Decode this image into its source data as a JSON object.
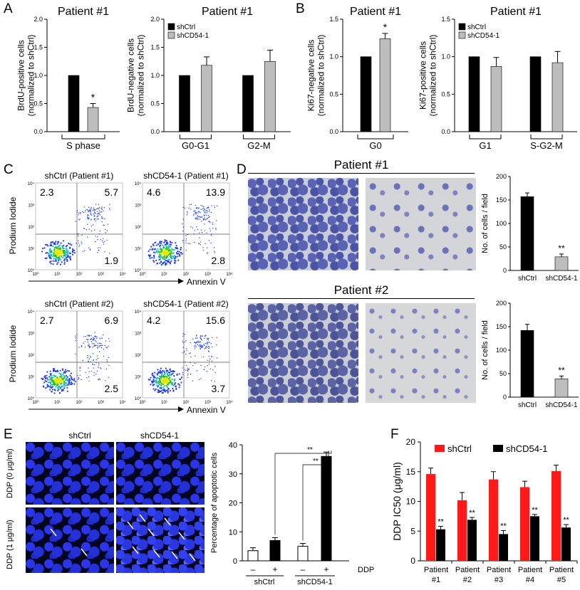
{
  "panel_labels": {
    "A": "A",
    "B": "B",
    "C": "C",
    "D": "D",
    "E": "E",
    "F": "F"
  },
  "colors": {
    "black_bar": "#000000",
    "gray_bar": "#bdbdbd",
    "red_bar": "#ff1a1a",
    "flow_blue": "#1f3cff"
  },
  "chart_data": [
    {
      "id": "A1",
      "type": "bar",
      "title": "Patient #1",
      "ylabel": "BrdU-positive cells (normalized to shCtrl)",
      "ylim": [
        0,
        2.0
      ],
      "yticks": [
        "0.0",
        "0.5",
        "1.0",
        "1.5",
        "2.0"
      ],
      "categories": [
        "S phase"
      ],
      "series": [
        {
          "name": "shCtrl",
          "values": [
            1.0
          ]
        },
        {
          "name": "shCD54-1",
          "values": [
            0.43
          ]
        }
      ],
      "errors": [
        [
          0
        ],
        [
          0.07
        ]
      ],
      "annotations": [
        "*"
      ]
    },
    {
      "id": "A2",
      "type": "bar",
      "title": "Patient #1",
      "ylabel": "BrdU-negative cells (normalized to shCtrl)",
      "ylim": [
        0,
        2.0
      ],
      "yticks": [
        "0.0",
        "0.5",
        "1.0",
        "1.5",
        "2.0"
      ],
      "categories": [
        "G0-G1",
        "G2-M"
      ],
      "legend": [
        "shCtrl",
        "shCD54-1"
      ],
      "series": [
        {
          "name": "shCtrl",
          "values": [
            1.0,
            1.0
          ]
        },
        {
          "name": "shCD54-1",
          "values": [
            1.18,
            1.25
          ]
        }
      ],
      "errors": [
        [
          0,
          0
        ],
        [
          0.15,
          0.2
        ]
      ]
    },
    {
      "id": "B1",
      "type": "bar",
      "title": "Patient #1",
      "ylabel": "Ki67-negative cells (normalized to shCtrl)",
      "ylim": [
        0,
        1.5
      ],
      "yticks": [
        "0.0",
        "0.5",
        "1.0",
        "1.5"
      ],
      "categories": [
        "G0"
      ],
      "series": [
        {
          "name": "shCtrl",
          "values": [
            1.0
          ]
        },
        {
          "name": "shCD54-1",
          "values": [
            1.24
          ]
        }
      ],
      "errors": [
        [
          0
        ],
        [
          0.07
        ]
      ],
      "annotations": [
        "*"
      ]
    },
    {
      "id": "B2",
      "type": "bar",
      "title": "Patient #1",
      "ylabel": "Ki67-positive cells (normalized to shCtrl)",
      "ylim": [
        0,
        1.5
      ],
      "yticks": [
        "0.0",
        "0.5",
        "1.0",
        "1.5"
      ],
      "categories": [
        "G1",
        "S-G2-M"
      ],
      "legend": [
        "shCtrl",
        "shCD54-1"
      ],
      "series": [
        {
          "name": "shCtrl",
          "values": [
            1.0,
            1.0
          ]
        },
        {
          "name": "shCD54-1",
          "values": [
            0.87,
            0.92
          ]
        }
      ],
      "errors": [
        [
          0,
          0
        ],
        [
          0.12,
          0.15
        ]
      ]
    },
    {
      "id": "D1",
      "type": "bar",
      "ylabel": "No. of cells / field",
      "ylim": [
        0,
        200
      ],
      "yticks": [
        "0",
        "50",
        "100",
        "150",
        "200"
      ],
      "categories": [
        "shCtrl",
        "shCD54-1"
      ],
      "values": [
        157,
        29
      ],
      "errors": [
        8,
        6
      ],
      "annotations": [
        "**"
      ]
    },
    {
      "id": "D2",
      "type": "bar",
      "ylabel": "No. of cells / field",
      "ylim": [
        0,
        200
      ],
      "yticks": [
        "0",
        "50",
        "100",
        "150",
        "200"
      ],
      "categories": [
        "shCtrl",
        "shCD54-1"
      ],
      "values": [
        142,
        39
      ],
      "errors": [
        13,
        6
      ],
      "annotations": [
        "**"
      ]
    },
    {
      "id": "E",
      "type": "bar",
      "ylabel": "Percentage of apoptotic cells",
      "ylim": [
        0,
        40
      ],
      "yticks": [
        "0",
        "10",
        "20",
        "30",
        "40"
      ],
      "categories": [
        "–",
        "+",
        "–",
        "+"
      ],
      "groups": [
        "shCtrl",
        "shCD54-1"
      ],
      "extra_label": "DDP",
      "values": [
        3.5,
        7,
        5,
        36
      ],
      "errors": [
        1,
        1,
        1,
        1.5
      ],
      "annotations": [
        "**",
        "**"
      ]
    },
    {
      "id": "F",
      "type": "bar",
      "ylabel": "DDP IC50 (μg/ml)",
      "ylim": [
        0,
        20
      ],
      "yticks": [
        "0",
        "5",
        "10",
        "15",
        "20"
      ],
      "categories": [
        "Patient #1",
        "Patient #2",
        "Patient #3",
        "Patient #4",
        "Patient #5"
      ],
      "legend": [
        "shCtrl",
        "shCD54-1"
      ],
      "series": [
        {
          "name": "shCtrl",
          "values": [
            14.6,
            10.2,
            13.7,
            12.4,
            15.1
          ]
        },
        {
          "name": "shCD54-1",
          "values": [
            5.3,
            6.9,
            4.5,
            7.5,
            5.6
          ]
        }
      ],
      "errors": [
        [
          1.0,
          1.3,
          1.3,
          1.0,
          1.0
        ],
        [
          0.5,
          0.4,
          0.6,
          0.3,
          0.5
        ]
      ],
      "annotations": [
        "**"
      ]
    }
  ],
  "flow": {
    "ylabel": "Prodium Iodide",
    "xlabel": "Annexin V",
    "plots": [
      {
        "title": "shCtrl (Patient #1)",
        "ul": "2.3",
        "ur": "5.7",
        "lr": "1.9"
      },
      {
        "title": "shCD54-1 (Patient #1)",
        "ul": "4.6",
        "ur": "13.9",
        "lr": "2.8"
      },
      {
        "title": "shCtrl (Patient #2)",
        "ul": "2.7",
        "ur": "6.9",
        "lr": "2.5"
      },
      {
        "title": "shCD54-1 (Patient #2)",
        "ul": "4.2",
        "ur": "15.6",
        "lr": "3.7"
      }
    ],
    "ticks": [
      "10⁰",
      "10¹",
      "10²",
      "10³",
      "10⁴"
    ]
  },
  "panelD": {
    "patient1": "Patient #1",
    "patient2": "Patient #2"
  },
  "panelE": {
    "col1": "shCtrl",
    "col2": "shCD54-1",
    "row1": "DDP (0 μg/ml)",
    "row2": "DDP (1 μg/ml)"
  }
}
